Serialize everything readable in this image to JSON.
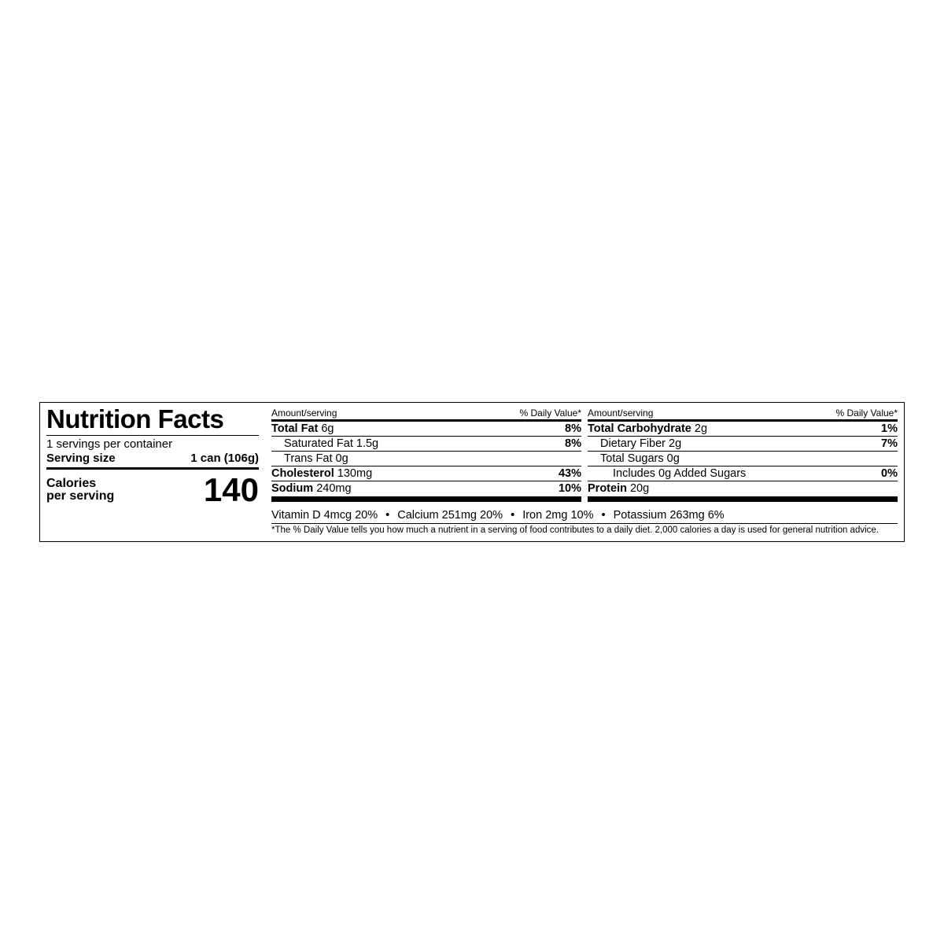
{
  "title": "Nutrition Facts",
  "servings_per_container": "1 servings per container",
  "serving_size_label": "Serving size",
  "serving_size_value": "1 can (106g)",
  "calories_label": "Calories",
  "per_serving_label": "per serving",
  "calories_value": "140",
  "header_amount": "Amount/serving",
  "header_dv": "% Daily Value*",
  "col1": {
    "r1": {
      "bold": "Total Fat",
      "amt": " 6g",
      "dv": "8%"
    },
    "r2": {
      "name": "Saturated Fat 1.5g",
      "dv": "8%"
    },
    "r3": {
      "name": "Trans Fat 0g",
      "dv": ""
    },
    "r4": {
      "bold": "Cholesterol",
      "amt": " 130mg",
      "dv": "43%"
    },
    "r5": {
      "bold": "Sodium",
      "amt": " 240mg",
      "dv": "10%"
    }
  },
  "col2": {
    "r1": {
      "bold": "Total Carbohydrate",
      "amt": " 2g",
      "dv": "1%"
    },
    "r2": {
      "name": "Dietary Fiber 2g",
      "dv": "7%"
    },
    "r3": {
      "name": "Total Sugars 0g",
      "dv": ""
    },
    "r4": {
      "name": "Includes 0g Added Sugars",
      "dv": "0%"
    },
    "r5": {
      "bold": "Protein",
      "amt": " 20g",
      "dv": ""
    }
  },
  "vitamins": {
    "v1": "Vitamin D 4mcg 20%",
    "v2": "Calcium 251mg 20%",
    "v3": "Iron 2mg 10%",
    "v4": "Potassium 263mg 6%"
  },
  "footnote": "*The % Daily Value tells you how much a nutrient in a serving of food contributes to a daily diet. 2,000 calories a day is used for general nutrition advice."
}
